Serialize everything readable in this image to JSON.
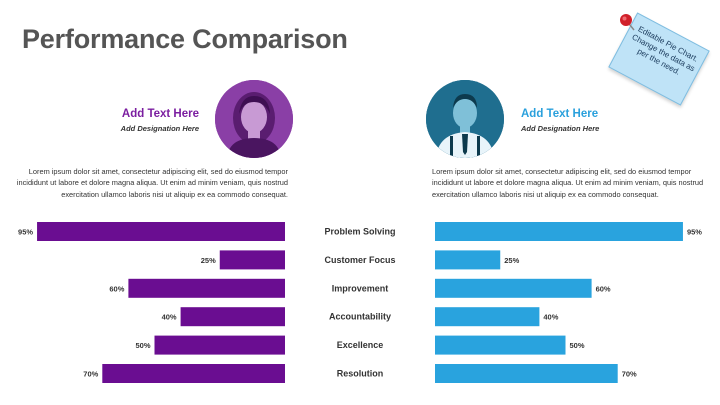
{
  "title": "Performance Comparison",
  "note": {
    "text": "Editable Pie Chart. Change the data as per the need.",
    "color": "#bfe3f7"
  },
  "left": {
    "name": "Add Text Here",
    "designation": "Add Designation Here",
    "description": "Lorem ipsum dolor sit amet, consectetur adipiscing elit, sed do eiusmod tempor incididunt ut labore et dolore magna aliqua. Ut enim ad minim veniam, quis nostrud exercitation ullamco laboris nisi ut aliquip ex ea commodo consequat.",
    "color": "#6a0d91"
  },
  "right": {
    "name": "Add Text Here",
    "designation": "Add Designation Here",
    "description": "Lorem ipsum dolor sit amet, consectetur adipiscing elit, sed do eiusmod tempor incididunt ut labore et dolore magna aliqua. Ut enim ad minim veniam, quis nostrud exercitation ullamco laboris nisi ut aliquip ex ea commodo consequat.",
    "color": "#29a3de"
  },
  "chart_data": {
    "type": "bar",
    "orientation": "horizontal-diverging",
    "title": "",
    "categories": [
      "Problem Solving",
      "Customer Focus",
      "Improvement",
      "Accountability",
      "Excellence",
      "Resolution"
    ],
    "series": [
      {
        "values": [
          95,
          25,
          60,
          40,
          50,
          70
        ],
        "color": "#6a0d91"
      },
      {
        "values": [
          95,
          25,
          60,
          40,
          50,
          70
        ],
        "color": "#29a3de"
      }
    ],
    "xlim": [
      0,
      100
    ],
    "value_suffix": "%",
    "grid": false,
    "legend": "none"
  }
}
